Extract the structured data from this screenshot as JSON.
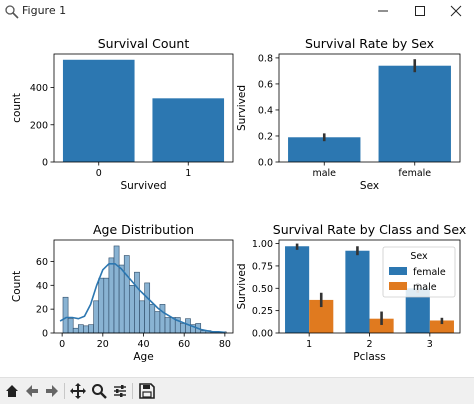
{
  "window": {
    "title": "Figure 1",
    "icons": [
      "pyplot-app-icon",
      "minimize-icon",
      "maximize-icon",
      "close-icon"
    ]
  },
  "toolbar": {
    "icons": [
      "home-icon",
      "back-arrow-icon",
      "forward-arrow-icon",
      "pan-move-icon",
      "zoom-magnifier-icon",
      "subplots-configure-icon",
      "save-floppy-icon"
    ]
  },
  "colors": {
    "blue": "#2c77b1",
    "orange": "#e07a1f",
    "hist_fill": "#89b3d3",
    "kde": "#2c77b1",
    "errbar": "#333333"
  },
  "chart_data": [
    {
      "type": "bar",
      "title": "Survival Count",
      "xlabel": "Survived",
      "ylabel": "count",
      "categories": [
        "0",
        "1"
      ],
      "values": [
        549,
        342
      ],
      "ylim": [
        0,
        580
      ],
      "yticks": [
        0,
        200,
        400
      ],
      "grid": false
    },
    {
      "type": "bar",
      "title": "Survival Rate by Sex",
      "xlabel": "Sex",
      "ylabel": "Survived",
      "categories": [
        "male",
        "female"
      ],
      "values": [
        0.19,
        0.74
      ],
      "errors": [
        [
          0.16,
          0.22
        ],
        [
          0.69,
          0.79
        ]
      ],
      "ylim": [
        0,
        0.83
      ],
      "yticks": [
        0.0,
        0.2,
        0.4,
        0.6,
        0.8
      ],
      "grid": false
    },
    {
      "type": "bar",
      "title": "Age Distribution",
      "xlabel": "Age",
      "ylabel": "Count",
      "bin_edges": [
        0.42,
        2.93,
        5.44,
        7.94,
        10.45,
        12.96,
        15.47,
        17.98,
        20.48,
        22.99,
        25.5,
        28.01,
        30.52,
        33.02,
        35.53,
        38.04,
        40.55,
        43.06,
        45.56,
        48.07,
        50.58,
        53.09,
        55.6,
        58.1,
        60.61,
        63.12,
        65.63,
        68.14,
        70.64,
        73.15,
        75.66,
        78.17,
        80.68
      ],
      "counts": [
        30,
        12,
        4,
        7,
        6,
        7,
        27,
        46,
        46,
        63,
        73,
        57,
        65,
        40,
        51,
        27,
        42,
        24,
        18,
        24,
        13,
        13,
        13,
        8,
        12,
        7,
        8,
        2,
        2,
        1,
        1,
        1
      ],
      "kde": [
        [
          -1,
          10
        ],
        [
          2,
          13
        ],
        [
          5,
          13
        ],
        [
          8,
          12
        ],
        [
          11,
          14
        ],
        [
          14,
          24
        ],
        [
          17,
          40
        ],
        [
          20,
          53
        ],
        [
          23,
          58
        ],
        [
          26,
          58
        ],
        [
          29,
          54
        ],
        [
          32,
          48
        ],
        [
          35,
          42
        ],
        [
          38,
          36
        ],
        [
          41,
          31
        ],
        [
          44,
          26
        ],
        [
          47,
          21
        ],
        [
          50,
          17
        ],
        [
          53,
          14
        ],
        [
          56,
          11
        ],
        [
          59,
          9
        ],
        [
          62,
          7
        ],
        [
          65,
          5
        ],
        [
          68,
          3
        ],
        [
          71,
          2
        ],
        [
          74,
          1
        ],
        [
          77,
          1
        ],
        [
          80,
          0.5
        ]
      ],
      "xlim": [
        -4,
        84
      ],
      "ylim": [
        0,
        78
      ],
      "xticks": [
        0,
        20,
        40,
        60,
        80
      ],
      "yticks": [
        0,
        20,
        40,
        60
      ],
      "grid": false
    },
    {
      "type": "bar",
      "title": "Survival Rate by Class and Sex",
      "xlabel": "Pclass",
      "ylabel": "Survived",
      "categories": [
        "1",
        "2",
        "3"
      ],
      "series": [
        {
          "name": "female",
          "values": [
            0.97,
            0.92,
            0.5
          ],
          "errors": [
            [
              0.93,
              1.0
            ],
            [
              0.87,
              0.97
            ],
            [
              0.45,
              0.56
            ]
          ]
        },
        {
          "name": "male",
          "values": [
            0.37,
            0.16,
            0.14
          ],
          "errors": [
            [
              0.29,
              0.45
            ],
            [
              0.09,
              0.24
            ],
            [
              0.1,
              0.17
            ]
          ]
        }
      ],
      "legend_title": "Sex",
      "legend_position": "top-right",
      "ylim": [
        0,
        1.04
      ],
      "yticks": [
        0.0,
        0.25,
        0.5,
        0.75,
        1.0
      ],
      "grid": false
    }
  ]
}
